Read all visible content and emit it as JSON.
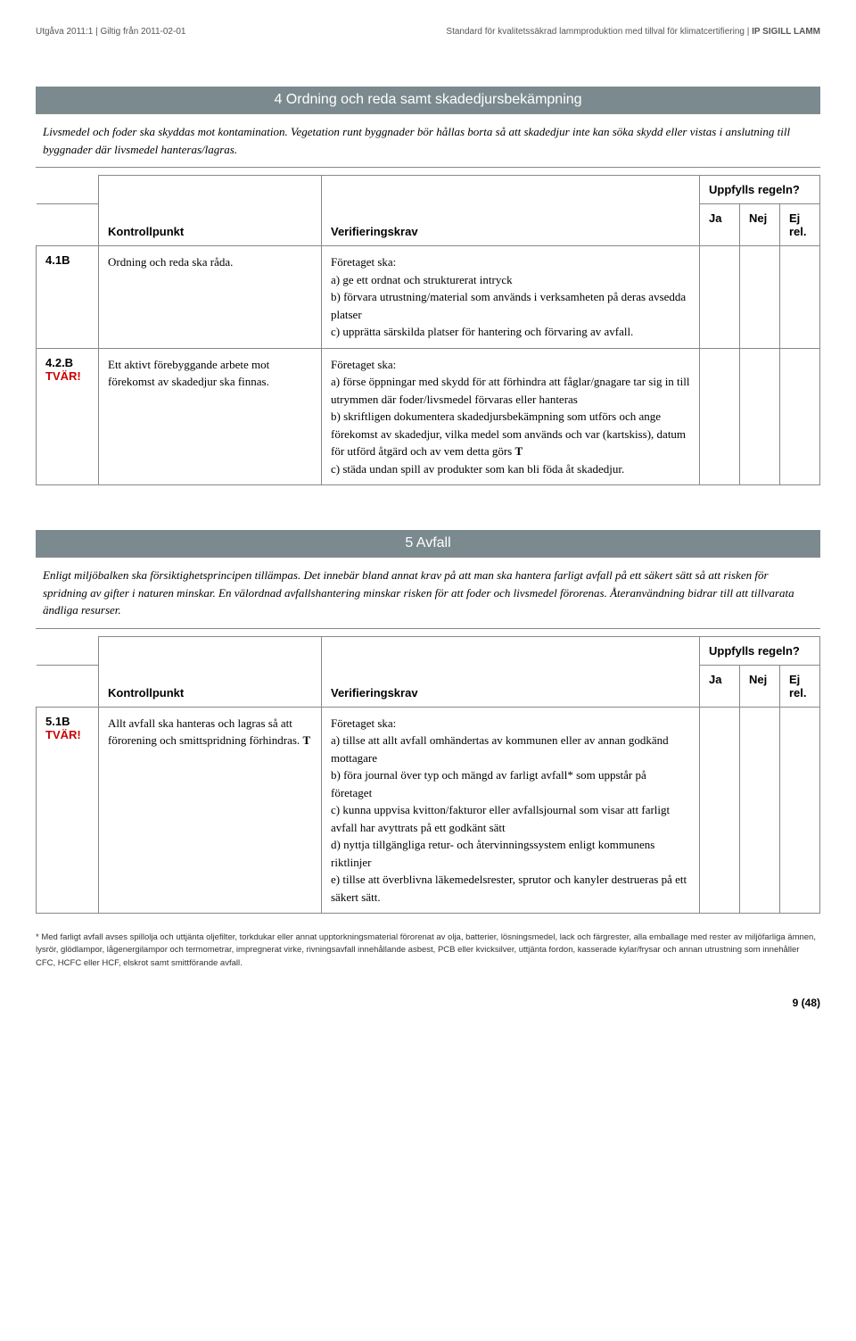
{
  "header": {
    "left": "Utgåva 2011:1 | Giltig från 2011-02-01",
    "right_plain": "Standard för kvalitetssäkrad lammproduktion med tillval för klimatcertifiering | ",
    "right_bold": "IP SIGILL LAMM"
  },
  "section4": {
    "title": "4  Ordning och reda samt skadedjursbekämpning",
    "intro": "Livsmedel och foder ska skyddas mot kontamination. Vegetation runt byggnader bör hållas borta så att skadedjur inte kan söka skydd eller vistas i anslutning till byggnader där livsmedel hanteras/lagras.",
    "uppfylls": "Uppfylls regeln?",
    "kp_header": "Kontrollpunkt",
    "vk_header": "Verifieringskrav",
    "ja": "Ja",
    "nej": "Nej",
    "ejrel": "Ej rel.",
    "rows": [
      {
        "id": "4.1B",
        "tvar": "",
        "kp": "Ordning och reda ska råda.",
        "vk": "Företaget ska:\na) ge ett ordnat och strukturerat intryck\nb) förvara utrustning/material som används i verksamheten på deras avsedda platser\nc) upprätta särskilda platser för hantering och förvaring av avfall."
      },
      {
        "id": "4.2.B",
        "tvar": "TVÄR!",
        "kp": "Ett aktivt förebyggande arbete mot förekomst av skadedjur ska finnas.",
        "vk_pre": "Företaget ska:\na) förse öppningar med skydd för att förhindra att fåglar/gnagare tar sig in till utrymmen där foder/livsmedel förvaras eller hanteras\nb) skriftligen dokumentera skadedjursbekämpning som utförs och ange förekomst av skadedjur, vilka medel som används och var (kartskiss), datum för utförd åtgärd och av vem detta görs ",
        "vk_t": "T",
        "vk_post": "\nc) städa undan spill av produkter som kan bli föda åt skadedjur."
      }
    ]
  },
  "section5": {
    "title": "5  Avfall",
    "intro": "Enligt miljöbalken ska försiktighetsprincipen tillämpas. Det innebär bland annat krav på att man ska hantera farligt avfall på ett säkert sätt så att risken för spridning av gifter i naturen minskar. En välordnad avfallshantering minskar  risken för att foder och livsmedel förorenas. Återanvändning bidrar till att tillvarata ändliga resurser.",
    "uppfylls": "Uppfylls regeln?",
    "kp_header": "Kontrollpunkt",
    "vk_header": "Verifieringskrav",
    "ja": "Ja",
    "nej": "Nej",
    "ejrel": "Ej rel.",
    "rows": [
      {
        "id": "5.1B",
        "tvar": "TVÄR!",
        "kp_pre": "Allt avfall ska hanteras och lagras så att förorening och smittspridning förhindras. ",
        "kp_t": "T",
        "vk": "Företaget ska:\na) tillse att allt avfall omhändertas av kommunen eller av annan godkänd mottagare\nb) föra journal över typ och mängd av farligt avfall* som uppstår på företaget\nc) kunna uppvisa kvitton/fakturor eller avfallsjournal som visar att farligt avfall har avyttrats på ett godkänt sätt\nd) nyttja tillgängliga retur- och återvinningssystem enligt kommunens riktlinjer\ne) tillse att överblivna läkemedelsrester, sprutor och kanyler destrueras på ett säkert sätt."
      }
    ]
  },
  "footnote": "* Med farligt avfall avses spillolja och uttjänta oljefilter, torkdukar eller annat upptorkningsmaterial förorenat av olja, batterier, lösningsmedel, lack och färgrester, alla emballage med rester av miljöfarliga ämnen, lysrör, glödlampor, lågenergilampor och termometrar, impregnerat virke, rivningsavfall innehållande asbest, PCB eller kvicksilver, uttjänta fordon, kasserade kylar/frysar och annan utrustning som innehåller CFC, HCFC eller HCF, elskrot samt smittförande avfall.",
  "page_num": "9 (48)"
}
